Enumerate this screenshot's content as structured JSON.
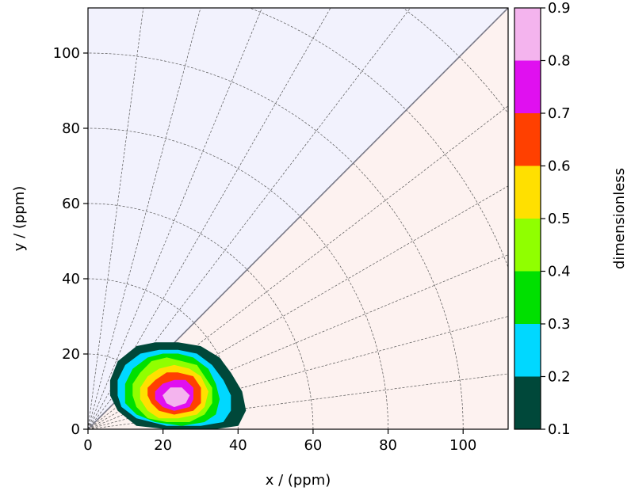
{
  "chart_data": {
    "type": "contour",
    "xlabel": "x / (ppm)",
    "ylabel": "y / (ppm)",
    "xlim": [
      0,
      112
    ],
    "ylim": [
      0,
      112
    ],
    "x_ticks": [
      0,
      20,
      40,
      60,
      80,
      100
    ],
    "y_ticks": [
      0,
      20,
      40,
      60,
      80,
      100
    ],
    "background": {
      "upper_triangle_color": "#f2f2fd",
      "lower_triangle_color": "#fdf2f0"
    },
    "diagonal": true,
    "polar_grid": {
      "radii": [
        20,
        40,
        60,
        80,
        100,
        120,
        140
      ],
      "angles_deg": [
        0,
        7.5,
        15,
        22.5,
        30,
        37.5,
        45,
        52.5,
        60,
        67.5,
        75,
        82.5,
        90
      ]
    },
    "colorbar": {
      "label": "dimensionless",
      "ticks": [
        "0.1",
        "0.2",
        "0.3",
        "0.4",
        "0.5",
        "0.6",
        "0.7",
        "0.8",
        "0.9"
      ],
      "levels": [
        0.1,
        0.2,
        0.3,
        0.4,
        0.5,
        0.6,
        0.7,
        0.8,
        0.9
      ],
      "colors": [
        "#00483a",
        "#00d8ff",
        "#00e000",
        "#90ff00",
        "#ffe000",
        "#ff4000",
        "#e010f0",
        "#f4b4ee"
      ]
    },
    "contours": [
      {
        "level": 0.1,
        "color": "#00483a",
        "points": [
          [
            6,
            13
          ],
          [
            8,
            18
          ],
          [
            13,
            22
          ],
          [
            18,
            23
          ],
          [
            24,
            23
          ],
          [
            30,
            22
          ],
          [
            35,
            19
          ],
          [
            38,
            15
          ],
          [
            41,
            10
          ],
          [
            42,
            5
          ],
          [
            40,
            1
          ],
          [
            33,
            0
          ],
          [
            22,
            0
          ],
          [
            13,
            1
          ],
          [
            8,
            5
          ],
          [
            6,
            9
          ]
        ]
      },
      {
        "level": 0.2,
        "color": "#00d8ff",
        "points": [
          [
            8,
            13
          ],
          [
            10,
            17
          ],
          [
            14,
            20
          ],
          [
            19,
            21
          ],
          [
            24,
            21
          ],
          [
            29,
            20
          ],
          [
            33,
            17
          ],
          [
            36,
            13
          ],
          [
            38,
            9
          ],
          [
            38,
            5
          ],
          [
            36,
            2
          ],
          [
            30,
            1
          ],
          [
            21,
            1
          ],
          [
            13,
            3
          ],
          [
            9,
            6
          ],
          [
            8,
            9
          ]
        ]
      },
      {
        "level": 0.3,
        "color": "#00e000",
        "points": [
          [
            10,
            12
          ],
          [
            12,
            16
          ],
          [
            16,
            19
          ],
          [
            20,
            20
          ],
          [
            24,
            20
          ],
          [
            28,
            19
          ],
          [
            32,
            16
          ],
          [
            34,
            12
          ],
          [
            35,
            8
          ],
          [
            34,
            4
          ],
          [
            31,
            2
          ],
          [
            25,
            1
          ],
          [
            18,
            2
          ],
          [
            13,
            4
          ],
          [
            10,
            7
          ]
        ]
      },
      {
        "level": 0.4,
        "color": "#90ff00",
        "points": [
          [
            12,
            12
          ],
          [
            14,
            15
          ],
          [
            17,
            18
          ],
          [
            21,
            19
          ],
          [
            25,
            18
          ],
          [
            29,
            17
          ],
          [
            31,
            14
          ],
          [
            33,
            11
          ],
          [
            33,
            7
          ],
          [
            31,
            4
          ],
          [
            27,
            2
          ],
          [
            21,
            2
          ],
          [
            16,
            3
          ],
          [
            13,
            6
          ],
          [
            12,
            9
          ]
        ]
      },
      {
        "level": 0.5,
        "color": "#ffe000",
        "points": [
          [
            14,
            11
          ],
          [
            16,
            14
          ],
          [
            19,
            16
          ],
          [
            23,
            17
          ],
          [
            27,
            16
          ],
          [
            30,
            14
          ],
          [
            32,
            10
          ],
          [
            31,
            6
          ],
          [
            29,
            4
          ],
          [
            24,
            3
          ],
          [
            19,
            3
          ],
          [
            16,
            5
          ],
          [
            14,
            8
          ]
        ]
      },
      {
        "level": 0.6,
        "color": "#ff4000",
        "points": [
          [
            16,
            11
          ],
          [
            18,
            13
          ],
          [
            21,
            15
          ],
          [
            24,
            15
          ],
          [
            28,
            14
          ],
          [
            30,
            11
          ],
          [
            30,
            7
          ],
          [
            28,
            5
          ],
          [
            23,
            4
          ],
          [
            19,
            5
          ],
          [
            17,
            7
          ],
          [
            16,
            9
          ]
        ]
      },
      {
        "level": 0.7,
        "color": "#e010f0",
        "points": [
          [
            18,
            10
          ],
          [
            20,
            12
          ],
          [
            23,
            13
          ],
          [
            26,
            13
          ],
          [
            28,
            11
          ],
          [
            28,
            8
          ],
          [
            27,
            6
          ],
          [
            23,
            5
          ],
          [
            20,
            6
          ],
          [
            18,
            8
          ]
        ]
      },
      {
        "level": 0.8,
        "color": "#f4b4ee",
        "points": [
          [
            20,
            9
          ],
          [
            22,
            11
          ],
          [
            25,
            11
          ],
          [
            27,
            9
          ],
          [
            26,
            7
          ],
          [
            23,
            6
          ],
          [
            21,
            7
          ]
        ]
      }
    ]
  }
}
